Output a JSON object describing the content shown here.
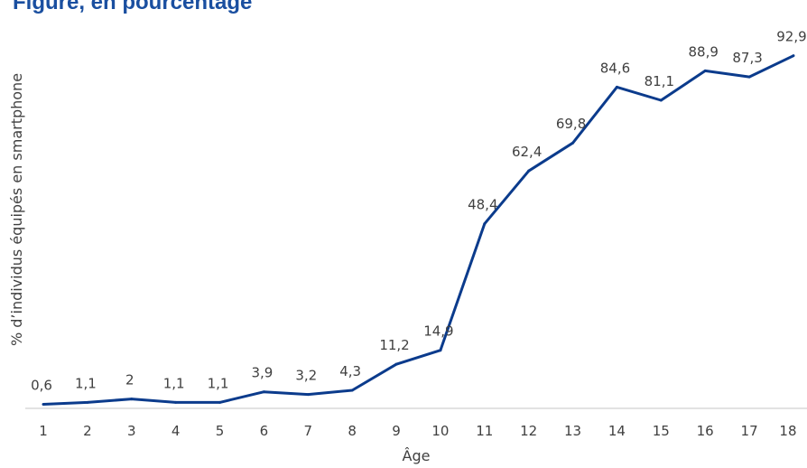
{
  "title": "Figure, en pourcentage",
  "chart_data": {
    "type": "line",
    "xlabel": "Âge",
    "ylabel": "% d’individus équipés en smartphone",
    "categories": [
      "1",
      "2",
      "3",
      "4",
      "5",
      "6",
      "7",
      "8",
      "9",
      "10",
      "11",
      "12",
      "13",
      "14",
      "15",
      "16",
      "17",
      "18"
    ],
    "series": [
      {
        "values": [
          0.6,
          1.1,
          2,
          1.1,
          1.1,
          3.9,
          3.2,
          4.3,
          11.2,
          14.9,
          48.4,
          62.4,
          69.8,
          84.6,
          81.1,
          88.9,
          87.3,
          92.9
        ],
        "labels": [
          "0,6",
          "1,1",
          "2",
          "1,1",
          "1,1",
          "3,9",
          "3,2",
          "4,3",
          "11,2",
          "14,9",
          "48,4",
          "62,4",
          "69,8",
          "84,6",
          "81,1",
          "88,9",
          "87,3",
          "92,9"
        ]
      }
    ],
    "ylim": [
      0,
      100
    ],
    "grid": false,
    "line_color": "#0b3b8c",
    "axis_color": "#d9d9d9"
  }
}
